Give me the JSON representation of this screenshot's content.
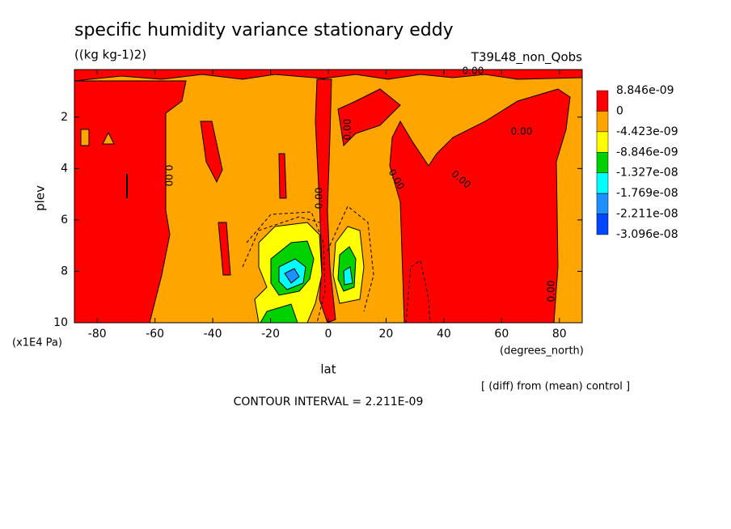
{
  "chart_data": {
    "type": "contour",
    "title": "specific humidity variance stationary eddy",
    "subtitle": "((kg kg-1)2)",
    "run_label": "T39L48_non_Qobs",
    "x_label": "lat",
    "x_units": "(degrees_north)",
    "y_label": "plev",
    "y_units": "(x1E4 Pa)",
    "xlim": [
      -87.9,
      87.9
    ],
    "ylim": [
      10,
      0.15
    ],
    "xticks": [
      -80,
      -60,
      -40,
      -20,
      0,
      20,
      40,
      60,
      80
    ],
    "yticks": [
      2,
      4,
      6,
      8,
      10
    ],
    "levels": [
      {
        "value": 8.846e-09,
        "label": "8.846e-09"
      },
      0,
      {
        "value": -4.423e-09,
        "label": "-4.423e-09"
      },
      {
        "value": -8.846e-09,
        "label": "-8.846e-09"
      },
      {
        "value": -1.327e-08,
        "label": "-1.327e-08"
      },
      {
        "value": -1.769e-08,
        "label": "-1.769e-08"
      },
      {
        "value": -2.211e-08,
        "label": "-2.211e-08"
      },
      {
        "value": -3.096e-08,
        "label": "-3.096e-08"
      }
    ],
    "colors": [
      "#ff0000",
      "#ffa500",
      "#ffff00",
      "#00d200",
      "#00ffff",
      "#1e90ff",
      "#0046ff"
    ],
    "contour_labels": [
      "0.00",
      "0.00",
      "0.00",
      "0.00",
      "0.00",
      "0.00",
      "0.00",
      "0.00"
    ],
    "contour_interval": "CONTOUR INTERVAL = 2.211E-09",
    "note": "[ (diff) from (mean) control ]"
  }
}
